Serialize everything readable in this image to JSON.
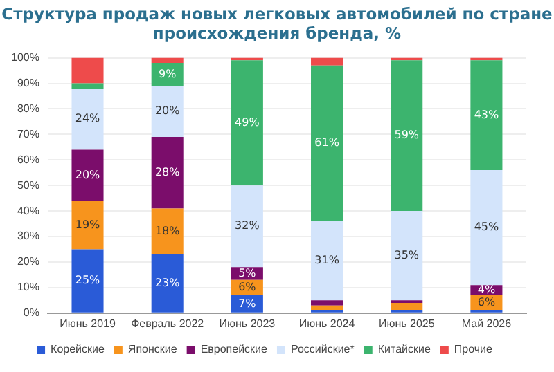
{
  "chart_data": {
    "type": "bar",
    "stacked": true,
    "title": "Структура продаж новых легковых автомобилей по стране происхождения бренда, %",
    "categories": [
      "Июнь 2019",
      "Февраль 2022",
      "Июнь 2023",
      "Июнь 2024",
      "Июнь 2025",
      "Май 2026"
    ],
    "series": [
      {
        "name": "Корейские",
        "color": "#2a5bd7",
        "values": [
          25,
          23,
          7,
          1,
          1,
          1
        ],
        "value_labels": [
          "25%",
          "23%",
          "7%",
          null,
          null,
          null
        ]
      },
      {
        "name": "Японские",
        "color": "#f7941d",
        "values": [
          19,
          18,
          6,
          2,
          3,
          6
        ],
        "value_labels": [
          "19%",
          "18%",
          "6%",
          null,
          null,
          "6%"
        ]
      },
      {
        "name": "Европейские",
        "color": "#7b0d6b",
        "values": [
          20,
          28,
          5,
          2,
          1,
          4
        ],
        "value_labels": [
          "20%",
          "28%",
          "5%",
          null,
          null,
          "4%"
        ]
      },
      {
        "name": "Российские*",
        "color": "#d3e4fb",
        "values": [
          24,
          20,
          32,
          31,
          35,
          45
        ],
        "value_labels": [
          "24%",
          "20%",
          "32%",
          "31%",
          "35%",
          "45%"
        ]
      },
      {
        "name": "Китайские",
        "color": "#3cb46e",
        "values": [
          2,
          9,
          49,
          61,
          59,
          43
        ],
        "value_labels": [
          null,
          "9%",
          "49%",
          "61%",
          "59%",
          "43%"
        ]
      },
      {
        "name": "Прочие",
        "color": "#ee4b4b",
        "values": [
          10,
          2,
          1,
          3,
          1,
          1
        ],
        "value_labels": [
          null,
          null,
          null,
          null,
          null,
          null
        ]
      }
    ],
    "ylim": [
      0,
      100
    ],
    "yticks": [
      {
        "value": 0,
        "label": "0%"
      },
      {
        "value": 10,
        "label": "10%"
      },
      {
        "value": 20,
        "label": "20%"
      },
      {
        "value": 30,
        "label": "30%"
      },
      {
        "value": 40,
        "label": "40%"
      },
      {
        "value": 50,
        "label": "50%"
      },
      {
        "value": 60,
        "label": "60%"
      },
      {
        "value": 70,
        "label": "70%"
      },
      {
        "value": 80,
        "label": "80%"
      },
      {
        "value": 90,
        "label": "90%"
      },
      {
        "value": 100,
        "label": "100%"
      }
    ],
    "grid": "y",
    "legend": "bottom"
  }
}
